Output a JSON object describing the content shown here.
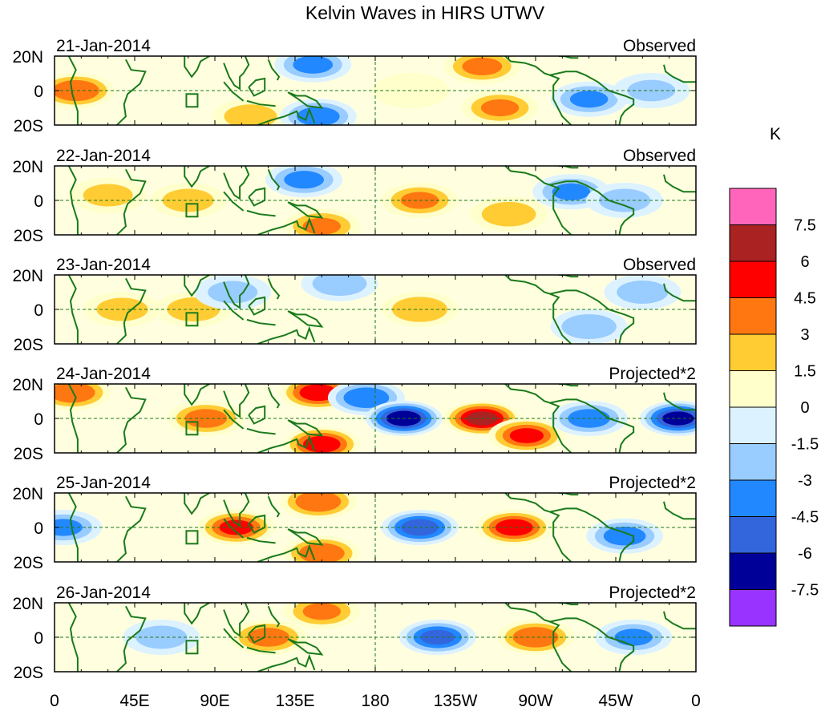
{
  "chart_data": {
    "type": "heatmap",
    "title": "Kelvin Waves in HIRS UTWV",
    "units": "K",
    "y_tick_labels": [
      "20N",
      "0",
      "20S"
    ],
    "x_tick_labels": [
      "0",
      "45E",
      "90E",
      "135E",
      "180",
      "135W",
      "90W",
      "45W",
      "0"
    ],
    "x_ticks_deg": [
      0,
      45,
      90,
      135,
      180,
      225,
      270,
      315,
      360
    ],
    "lat_range": [
      -20,
      20
    ],
    "lon_range": [
      0,
      360
    ],
    "colorbar": {
      "colors": [
        "#9933ff",
        "#000099",
        "#3366dd",
        "#2288ff",
        "#99ccff",
        "#ddf2ff",
        "#ffffcc",
        "#ffcc33",
        "#ff7711",
        "#ff0000",
        "#aa2222",
        "#ff66bb"
      ],
      "labels": [
        "-7.5",
        "-6",
        "-4.5",
        "-3",
        "-1.5",
        "0",
        "1.5",
        "3",
        "4.5",
        "6",
        "7.5"
      ],
      "levels": [
        -7.5,
        -6,
        -4.5,
        -3,
        -1.5,
        0,
        1.5,
        3,
        4.5,
        6,
        7.5
      ]
    },
    "panels": [
      {
        "date": "21-Jan-2014",
        "label": "Observed",
        "features": [
          {
            "lon": 12,
            "lat": 0,
            "value": 4.2
          },
          {
            "lon": 110,
            "lat": -15,
            "value": 2.2
          },
          {
            "lon": 145,
            "lat": 15,
            "value": -3.2
          },
          {
            "lon": 148,
            "lat": -15,
            "value": -3.6
          },
          {
            "lon": 200,
            "lat": 0,
            "value": 1.0
          },
          {
            "lon": 240,
            "lat": 14,
            "value": 3.2
          },
          {
            "lon": 250,
            "lat": -10,
            "value": 3.0
          },
          {
            "lon": 300,
            "lat": -5,
            "value": -3.0
          },
          {
            "lon": 335,
            "lat": 0,
            "value": -1.6
          }
        ]
      },
      {
        "date": "22-Jan-2014",
        "label": "Observed",
        "features": [
          {
            "lon": 30,
            "lat": 3,
            "value": 1.8
          },
          {
            "lon": 75,
            "lat": 0,
            "value": 2.0
          },
          {
            "lon": 140,
            "lat": 12,
            "value": -3.2
          },
          {
            "lon": 150,
            "lat": -15,
            "value": 3.0
          },
          {
            "lon": 205,
            "lat": 0,
            "value": 3.0
          },
          {
            "lon": 255,
            "lat": -8,
            "value": 2.4
          },
          {
            "lon": 290,
            "lat": 5,
            "value": -3.0
          },
          {
            "lon": 320,
            "lat": 0,
            "value": -2.0
          }
        ]
      },
      {
        "date": "23-Jan-2014",
        "label": "Observed",
        "features": [
          {
            "lon": 38,
            "lat": 0,
            "value": 2.0
          },
          {
            "lon": 78,
            "lat": 0,
            "value": 2.2
          },
          {
            "lon": 100,
            "lat": 10,
            "value": -1.8
          },
          {
            "lon": 160,
            "lat": 15,
            "value": -2.4
          },
          {
            "lon": 205,
            "lat": 0,
            "value": 2.6
          },
          {
            "lon": 300,
            "lat": -10,
            "value": -2.5
          },
          {
            "lon": 330,
            "lat": 10,
            "value": -2.0
          }
        ]
      },
      {
        "date": "24-Jan-2014",
        "label": "Projected*2",
        "features": [
          {
            "lon": 10,
            "lat": 15,
            "value": 4.0
          },
          {
            "lon": 85,
            "lat": 0,
            "value": 3.5
          },
          {
            "lon": 148,
            "lat": 15,
            "value": 5.0
          },
          {
            "lon": 150,
            "lat": -15,
            "value": 5.0
          },
          {
            "lon": 175,
            "lat": 12,
            "value": -4.0
          },
          {
            "lon": 196,
            "lat": 0,
            "value": -6.5
          },
          {
            "lon": 240,
            "lat": 0,
            "value": 6.0
          },
          {
            "lon": 265,
            "lat": -10,
            "value": 4.5
          },
          {
            "lon": 300,
            "lat": 0,
            "value": -3.5
          },
          {
            "lon": 350,
            "lat": 0,
            "value": -6.0
          }
        ]
      },
      {
        "date": "25-Jan-2014",
        "label": "Projected*2",
        "features": [
          {
            "lon": 5,
            "lat": 0,
            "value": -3.0
          },
          {
            "lon": 102,
            "lat": 0,
            "value": 4.5
          },
          {
            "lon": 148,
            "lat": 15,
            "value": 4.0
          },
          {
            "lon": 150,
            "lat": -15,
            "value": 4.0
          },
          {
            "lon": 205,
            "lat": 0,
            "value": -5.0
          },
          {
            "lon": 258,
            "lat": 0,
            "value": 5.0
          },
          {
            "lon": 320,
            "lat": -5,
            "value": -3.5
          }
        ]
      },
      {
        "date": "26-Jan-2014",
        "label": "Projected*2",
        "features": [
          {
            "lon": 60,
            "lat": 0,
            "value": -2.0
          },
          {
            "lon": 120,
            "lat": 0,
            "value": 3.5
          },
          {
            "lon": 150,
            "lat": 15,
            "value": 3.0
          },
          {
            "lon": 215,
            "lat": 0,
            "value": -4.5
          },
          {
            "lon": 270,
            "lat": 0,
            "value": 4.0
          },
          {
            "lon": 325,
            "lat": 0,
            "value": -3.0
          }
        ]
      }
    ]
  }
}
